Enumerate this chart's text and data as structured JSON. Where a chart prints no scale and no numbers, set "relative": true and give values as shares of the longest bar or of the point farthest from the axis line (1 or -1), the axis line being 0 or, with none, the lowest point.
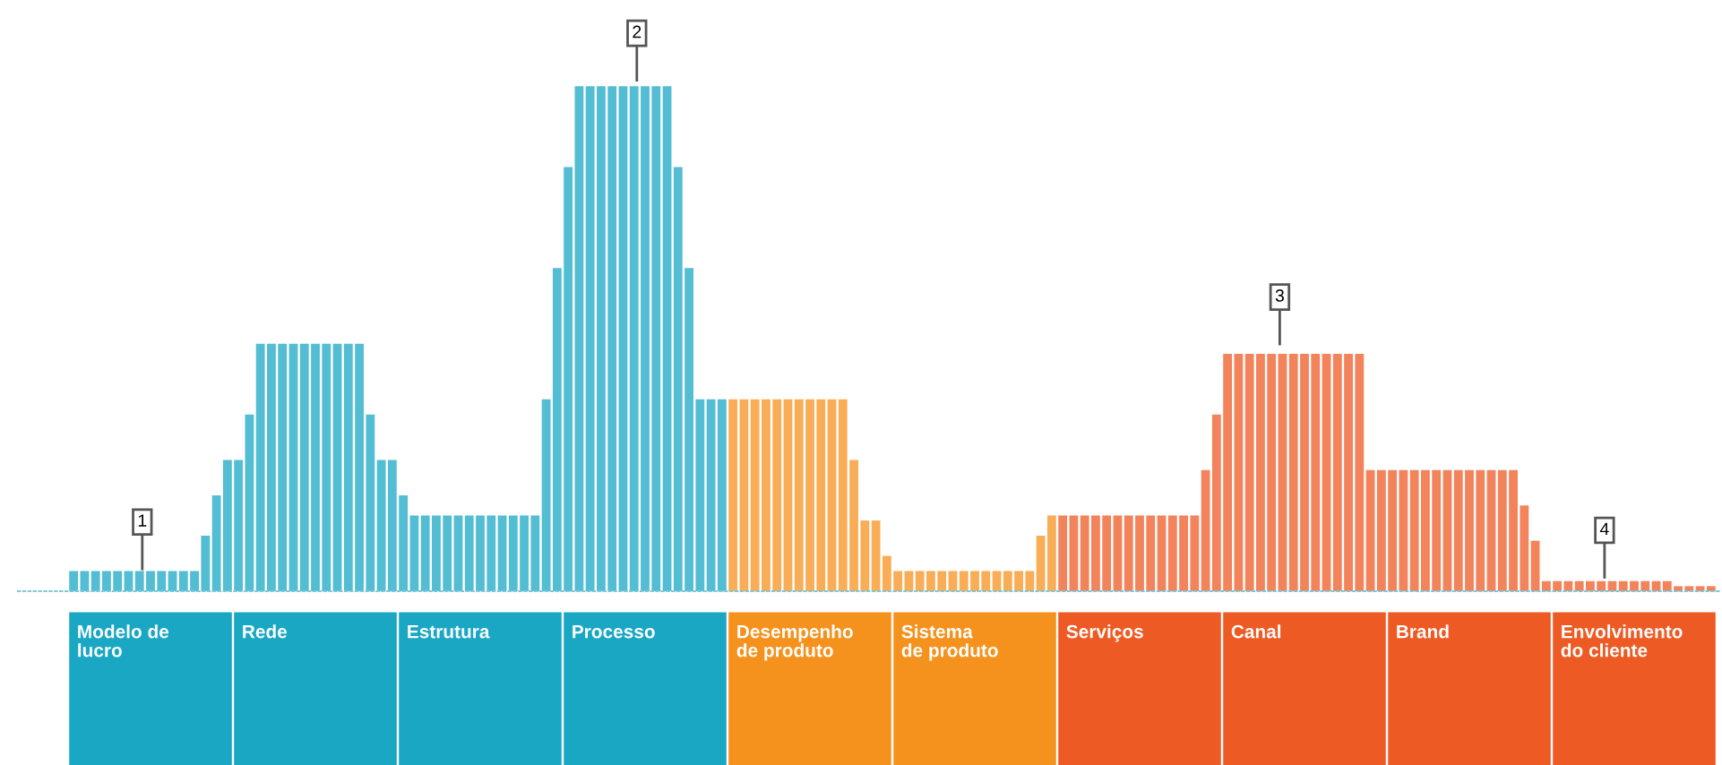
{
  "chart_data": {
    "type": "bar",
    "relative": true,
    "categories": [
      null,
      null,
      null,
      null,
      null,
      null,
      null,
      null,
      null,
      null,
      null,
      null,
      null,
      null,
      null,
      null,
      null,
      null,
      null,
      null,
      null,
      null,
      null,
      null,
      null,
      null,
      null,
      null,
      null,
      null,
      null,
      null,
      null,
      null,
      null,
      null,
      null,
      null,
      null,
      null,
      null,
      null,
      null,
      null,
      null,
      null,
      null,
      null,
      null,
      null,
      null,
      null,
      null,
      null,
      null,
      null,
      null,
      null,
      null,
      null,
      null,
      null,
      null,
      null,
      null,
      null,
      null,
      null,
      null,
      null,
      null,
      null,
      null,
      null,
      null,
      null,
      null,
      null,
      null,
      null,
      null,
      null,
      null,
      null,
      null,
      null,
      null,
      null,
      null,
      null,
      null,
      null,
      null,
      null,
      null,
      null,
      null,
      null,
      null,
      null,
      null,
      null,
      null,
      null,
      null,
      null,
      null,
      null,
      null,
      null,
      null,
      null,
      null,
      null,
      null,
      null,
      null,
      null,
      null,
      null,
      null,
      null,
      null,
      null,
      null,
      null,
      null,
      null,
      null,
      null,
      null,
      null,
      null,
      null,
      null,
      null,
      null,
      null,
      null,
      null,
      null,
      null,
      null,
      null,
      null,
      null,
      null,
      null,
      null,
      null
    ],
    "values": [
      0.04,
      0.04,
      0.04,
      0.04,
      0.04,
      0.04,
      0.04,
      0.04,
      0.04,
      0.04,
      0.04,
      0.04,
      0.11,
      0.19,
      0.26,
      0.26,
      0.35,
      0.49,
      0.49,
      0.49,
      0.49,
      0.49,
      0.49,
      0.49,
      0.49,
      0.49,
      0.49,
      0.35,
      0.26,
      0.26,
      0.19,
      0.15,
      0.15,
      0.15,
      0.15,
      0.15,
      0.15,
      0.15,
      0.15,
      0.15,
      0.15,
      0.15,
      0.15,
      0.38,
      0.64,
      0.84,
      1,
      1,
      1,
      1,
      1,
      1,
      1,
      1,
      1,
      0.84,
      0.64,
      0.38,
      0.38,
      0.38,
      0.38,
      0.38,
      0.38,
      0.38,
      0.38,
      0.38,
      0.38,
      0.38,
      0.38,
      0.38,
      0.38,
      0.26,
      0.14,
      0.14,
      0.07,
      0.04,
      0.04,
      0.04,
      0.04,
      0.04,
      0.04,
      0.04,
      0.04,
      0.04,
      0.04,
      0.04,
      0.04,
      0.04,
      0.11,
      0.15,
      0.15,
      0.15,
      0.15,
      0.15,
      0.15,
      0.15,
      0.15,
      0.15,
      0.15,
      0.15,
      0.15,
      0.15,
      0.15,
      0.24,
      0.35,
      0.47,
      0.47,
      0.47,
      0.47,
      0.47,
      0.47,
      0.47,
      0.47,
      0.47,
      0.47,
      0.47,
      0.47,
      0.47,
      0.24,
      0.24,
      0.24,
      0.24,
      0.24,
      0.24,
      0.24,
      0.24,
      0.24,
      0.24,
      0.24,
      0.24,
      0.24,
      0.24,
      0.17,
      0.1,
      0.02,
      0.02,
      0.02,
      0.02,
      0.02,
      0.02,
      0.02,
      0.02,
      0.02,
      0.02,
      0.02,
      0.02,
      0.01,
      0.01,
      0.01,
      0.01
    ],
    "colors": [
      "#1aa7c4",
      "#1aa7c4",
      "#1aa7c4",
      "#1aa7c4",
      "#1aa7c4",
      "#1aa7c4",
      "#1aa7c4",
      "#1aa7c4",
      "#1aa7c4",
      "#1aa7c4",
      "#1aa7c4",
      "#1aa7c4",
      "#1aa7c4",
      "#1aa7c4",
      "#1aa7c4",
      "#1aa7c4",
      "#1aa7c4",
      "#1aa7c4",
      "#1aa7c4",
      "#1aa7c4",
      "#1aa7c4",
      "#1aa7c4",
      "#1aa7c4",
      "#1aa7c4",
      "#1aa7c4",
      "#1aa7c4",
      "#1aa7c4",
      "#1aa7c4",
      "#1aa7c4",
      "#1aa7c4",
      "#1aa7c4",
      "#1aa7c4",
      "#1aa7c4",
      "#1aa7c4",
      "#1aa7c4",
      "#1aa7c4",
      "#1aa7c4",
      "#1aa7c4",
      "#1aa7c4",
      "#1aa7c4",
      "#1aa7c4",
      "#1aa7c4",
      "#1aa7c4",
      "#1aa7c4",
      "#1aa7c4",
      "#1aa7c4",
      "#1aa7c4",
      "#1aa7c4",
      "#1aa7c4",
      "#1aa7c4",
      "#1aa7c4",
      "#1aa7c4",
      "#1aa7c4",
      "#1aa7c4",
      "#1aa7c4",
      "#1aa7c4",
      "#1aa7c4",
      "#1aa7c4",
      "#1aa7c4",
      "#1aa7c4",
      "#f5921e",
      "#f5921e",
      "#f5921e",
      "#f5921e",
      "#f5921e",
      "#f5921e",
      "#f5921e",
      "#f5921e",
      "#f5921e",
      "#f5921e",
      "#f5921e",
      "#f5921e",
      "#f5921e",
      "#f5921e",
      "#f5921e",
      "#f5921e",
      "#f5921e",
      "#f5921e",
      "#f5921e",
      "#f5921e",
      "#f5921e",
      "#f5921e",
      "#f5921e",
      "#f5921e",
      "#f5921e",
      "#f5921e",
      "#f5921e",
      "#f5921e",
      "#f5921e",
      "#f5921e",
      "#ee5a24",
      "#ee5a24",
      "#ee5a24",
      "#ee5a24",
      "#ee5a24",
      "#ee5a24",
      "#ee5a24",
      "#ee5a24",
      "#ee5a24",
      "#ee5a24",
      "#ee5a24",
      "#ee5a24",
      "#ee5a24",
      "#ee5a24",
      "#ee5a24",
      "#ee5a24",
      "#ee5a24",
      "#ee5a24",
      "#ee5a24",
      "#ee5a24",
      "#ee5a24",
      "#ee5a24",
      "#ee5a24",
      "#ee5a24",
      "#ee5a24",
      "#ee5a24",
      "#ee5a24",
      "#ee5a24",
      "#ee5a24",
      "#ee5a24",
      "#ee5a24",
      "#ee5a24",
      "#ee5a24",
      "#ee5a24",
      "#ee5a24",
      "#ee5a24",
      "#ee5a24",
      "#ee5a24",
      "#ee5a24",
      "#ee5a24",
      "#ee5a24",
      "#ee5a24",
      "#ee5a24",
      "#ee5a24",
      "#ee5a24",
      "#ee5a24",
      "#ee5a24",
      "#ee5a24",
      "#ee5a24",
      "#ee5a24",
      "#ee5a24",
      "#ee5a24",
      "#ee5a24",
      "#ee5a24",
      "#ee5a24",
      "#ee5a24",
      "#ee5a24",
      "#ee5a24",
      "#ee5a24",
      "#ee5a24"
    ],
    "annotations": [
      "Modelo de\nlucro",
      "Rede",
      "Estrutura",
      "Processo",
      "Desempenho\nde produto",
      "Sistema\nde produto",
      "Serviços",
      "Canal",
      "Brand",
      "Envolvimento\ndo cliente",
      {
        "text": "1"
      },
      {
        "text": "2"
      },
      {
        "text": "3"
      },
      {
        "text": "4"
      }
    ],
    "legend": false
  }
}
